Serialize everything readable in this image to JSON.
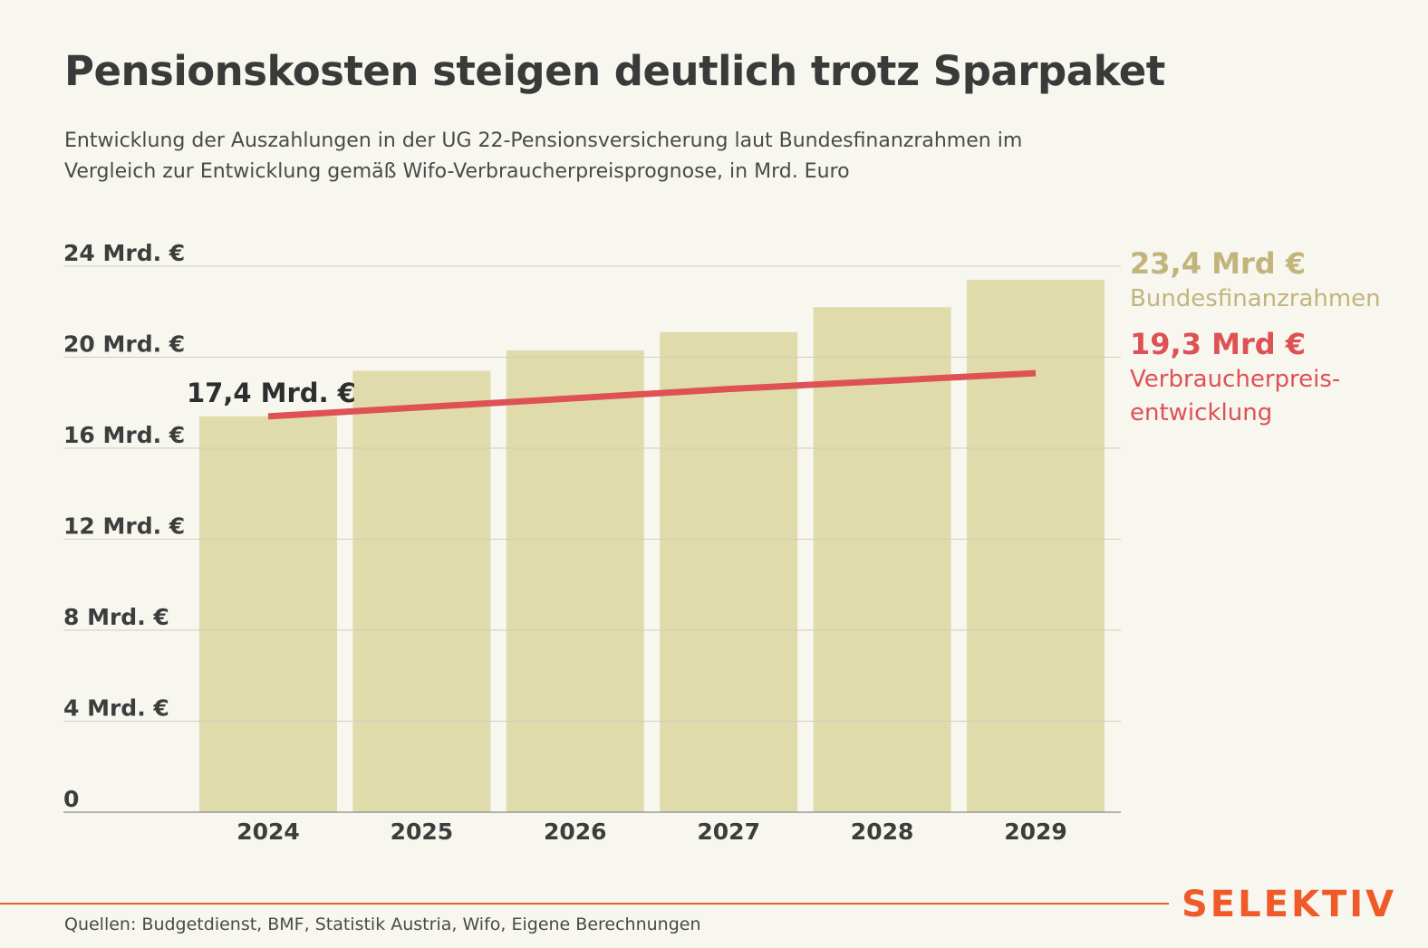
{
  "title": "Pensionskosten steigen deutlich trotz Sparpaket",
  "subtitle_line1": "Entwicklung der Auszahlungen in der UG 22-Pensionsversicherung laut Bundesfinanzrahmen im",
  "subtitle_line2": "Vergleich zur Entwicklung gemäß Wifo-Verbraucherpreisprognose, in Mrd. Euro",
  "colors": {
    "bar": "#e0dbab",
    "line": "#de5155",
    "label_bars": "#c2b57c",
    "brand": "#f05a28"
  },
  "chart_data": {
    "type": "bar",
    "categories": [
      "2024",
      "2025",
      "2026",
      "2027",
      "2028",
      "2029"
    ],
    "series": [
      {
        "name": "Bundesfinanzrahmen",
        "type": "bar",
        "values": [
          17.4,
          19.4,
          20.3,
          21.1,
          22.2,
          23.4
        ]
      },
      {
        "name": "Verbraucherpreisentwicklung",
        "type": "line",
        "values": [
          17.4,
          17.8,
          18.2,
          18.6,
          18.95,
          19.3
        ]
      }
    ],
    "y_ticks": [
      0,
      4,
      8,
      12,
      16,
      20,
      24
    ],
    "y_tick_labels": [
      "0",
      "4 Mrd. €",
      "8 Mrd. €",
      "12 Mrd. €",
      "16 Mrd. €",
      "20 Mrd. €",
      "24 Mrd. €"
    ],
    "ylim": [
      0,
      24
    ],
    "grid": true,
    "annotations": [
      {
        "text": "17,4 Mrd. €",
        "x": "2024",
        "y": 17.4
      }
    ]
  },
  "labels": {
    "bund_value": "23,4 Mrd €",
    "bund_name": "Bundesfinanzrahmen",
    "vpi_value": "19,3 Mrd €",
    "vpi_name_line1": "Verbraucherpreis-",
    "vpi_name_line2": "entwicklung"
  },
  "source": "Quellen: Budgetdienst, BMF, Statistik Austria, Wifo, Eigene Berechnungen",
  "brand": "SELEKTIV"
}
